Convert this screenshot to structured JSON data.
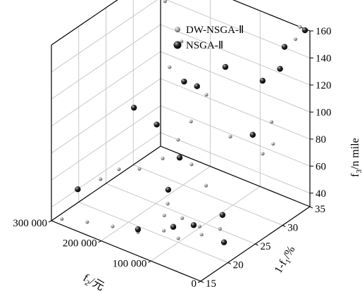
{
  "chart_data": {
    "type": "scatter3d",
    "title": "",
    "axes": {
      "x": {
        "label_main": "f",
        "label_sub": "2",
        "label_unit": "/元",
        "range": [
          0,
          300000
        ],
        "ticks": [
          0,
          100000,
          200000,
          300000
        ],
        "tick_labels": [
          "0",
          "100 000",
          "200 000",
          "300 000"
        ]
      },
      "y": {
        "label_main": "1-f",
        "label_sub": "1",
        "label_unit": "/%",
        "range": [
          15,
          35
        ],
        "ticks": [
          15,
          20,
          25,
          30,
          35
        ],
        "tick_labels": [
          "15",
          "20",
          "25",
          "30",
          "35"
        ]
      },
      "z": {
        "label_main": "f",
        "label_sub": "3",
        "label_unit": "/n mile",
        "range": [
          30,
          160
        ],
        "ticks": [
          40,
          60,
          80,
          100,
          120,
          140,
          160
        ],
        "tick_labels": [
          "40",
          "60",
          "80",
          "100",
          "120",
          "140",
          "160"
        ]
      }
    },
    "grid": true,
    "legend_position": "top-right",
    "series": [
      {
        "name": "DW-NSGA-Ⅱ",
        "color": "#8c8c8c",
        "points": [
          [
            300000,
            35,
            158
          ],
          [
            280000,
            34,
            143
          ],
          [
            225000,
            32,
            127
          ],
          [
            175000,
            32,
            95
          ],
          [
            260000,
            33,
            100
          ],
          [
            195000,
            31,
            75
          ],
          [
            210000,
            30,
            62
          ],
          [
            230000,
            29,
            48
          ],
          [
            255000,
            27,
            42
          ],
          [
            285000,
            26,
            40
          ],
          [
            300000,
            24,
            36
          ],
          [
            150000,
            27,
            61
          ],
          [
            105000,
            30,
            80
          ],
          [
            110000,
            26,
            54
          ],
          [
            55000,
            33,
            90
          ],
          [
            40000,
            30,
            77
          ],
          [
            30000,
            31,
            83
          ],
          [
            20000,
            35,
            160
          ],
          [
            18000,
            34,
            154
          ],
          [
            60000,
            24,
            35
          ],
          [
            75000,
            22,
            34
          ],
          [
            100000,
            20,
            33
          ],
          [
            140000,
            21,
            30
          ],
          [
            170000,
            19,
            30
          ],
          [
            210000,
            18,
            31
          ],
          [
            250000,
            17,
            31
          ],
          [
            290000,
            16,
            30
          ],
          [
            165000,
            24,
            38
          ],
          [
            150000,
            22,
            37
          ],
          [
            125000,
            23,
            36
          ],
          [
            90000,
            23,
            35
          ]
        ]
      },
      {
        "name": "NSGA-Ⅱ",
        "color": "#111111",
        "points": [
          [
            10000,
            35,
            159
          ],
          [
            40000,
            34,
            145
          ],
          [
            60000,
            35,
            123
          ],
          [
            95000,
            35,
            109
          ],
          [
            115000,
            30,
            130
          ],
          [
            150000,
            28,
            116
          ],
          [
            165000,
            27,
            120
          ],
          [
            200000,
            21,
            112
          ],
          [
            220000,
            27,
            80
          ],
          [
            185000,
            28,
            58
          ],
          [
            175000,
            25,
            44
          ],
          [
            280000,
            18,
            48
          ],
          [
            60000,
            30,
            88
          ],
          [
            55000,
            24,
            46
          ],
          [
            80000,
            21,
            43
          ],
          [
            110000,
            20,
            40
          ],
          [
            30000,
            22,
            35
          ],
          [
            170000,
            19,
            32
          ]
        ]
      }
    ]
  }
}
